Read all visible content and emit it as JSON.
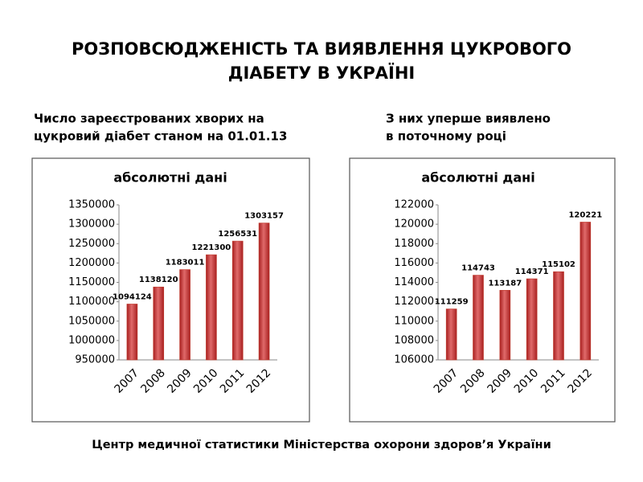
{
  "title": [
    "РОЗПОВСЮДЖЕНІСТЬ ТА ВИЯВЛЕННЯ ЦУКРОВОГО",
    "ДІАБЕТУ В УКРАЇНІ"
  ],
  "footer": "Центр медичної статистики Міністерства охорони здоров’я України",
  "chart_data": [
    {
      "type": "bar",
      "subtitle": [
        "Число зареєстрованих хворих на",
        "цукровий діабет станом на 01.01.13"
      ],
      "title": "абсолютні дані",
      "categories": [
        "2007",
        "2008",
        "2009",
        "2010",
        "2011",
        "2012"
      ],
      "values": [
        1094124,
        1138120,
        1183011,
        1221300,
        1256531,
        1303157
      ],
      "color": "#c0392b",
      "ylim": [
        950000,
        1350000
      ],
      "yticks": [
        950000,
        1000000,
        1050000,
        1100000,
        1150000,
        1200000,
        1250000,
        1300000,
        1350000
      ],
      "grid": false
    },
    {
      "type": "bar",
      "subtitle": [
        "З них уперше виявлено",
        " в поточному році"
      ],
      "title": "абсолютні дані",
      "categories": [
        "2007",
        "2008",
        "2009",
        "2010",
        "2011",
        "2012"
      ],
      "values": [
        111259,
        114743,
        113187,
        114371,
        115102,
        120221
      ],
      "color": "#c0392b",
      "ylim": [
        106000,
        122000
      ],
      "yticks": [
        106000,
        108000,
        110000,
        112000,
        114000,
        116000,
        118000,
        120000,
        122000
      ],
      "grid": false
    }
  ]
}
